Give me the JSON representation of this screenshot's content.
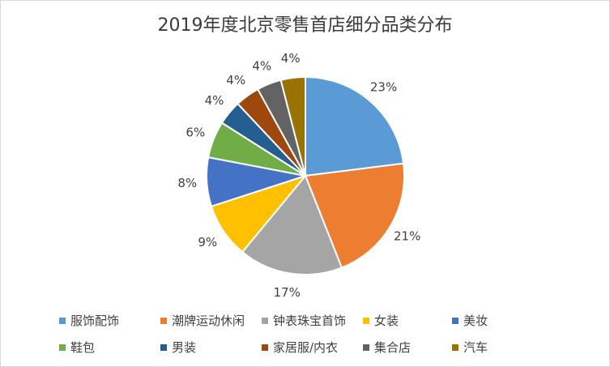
{
  "chart_data": {
    "type": "pie",
    "title": "2019年度北京零售首店细分品类分布",
    "categories": [
      "服饰配饰",
      "潮牌运动休闲",
      "钟表珠宝首饰",
      "女装",
      "美妆",
      "鞋包",
      "男装",
      "家居服/内衣",
      "集合店",
      "汽车"
    ],
    "values": [
      23,
      21,
      17,
      9,
      8,
      6,
      4,
      4,
      4,
      4
    ],
    "labels": [
      "23%",
      "21%",
      "17%",
      "9%",
      "8%",
      "6%",
      "4%",
      "4%",
      "4%",
      "4%"
    ],
    "colors": [
      "#5b9bd5",
      "#ed7d31",
      "#a5a5a5",
      "#ffc000",
      "#4472c4",
      "#70ad47",
      "#255e91",
      "#9e480e",
      "#636363",
      "#997300"
    ],
    "legend_position": "bottom"
  }
}
